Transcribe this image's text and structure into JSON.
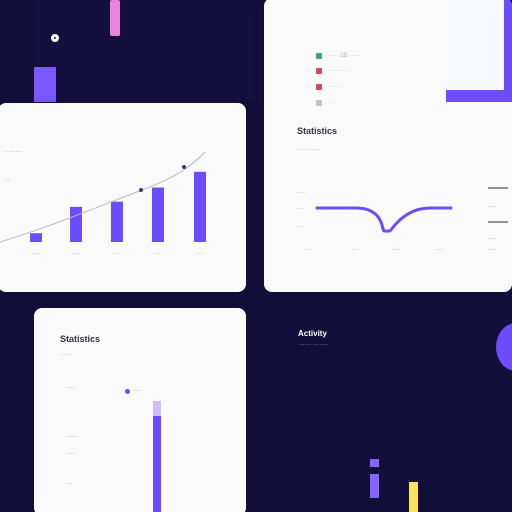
{
  "colors": {
    "background": "#120f3a",
    "card": "#fafafa",
    "accent": "#6d4cff",
    "accent_light": "#c9b8ff",
    "yellow": "#ffe25c",
    "pink": "#e586e1",
    "green": "#3ea56d",
    "red": "#d8465f",
    "gray": "#9999aa"
  },
  "icons": {
    "dark_dot": "circle-icon",
    "legend_green": "checkbox-icon",
    "legend_red": "checkbox-icon",
    "legend_gray": "checkbox-icon"
  },
  "top_left": {
    "left_caption": "·· ········",
    "left_tag": "····"
  },
  "bar_chart": {
    "chart_data": {
      "type": "bar",
      "categories": [
        "·····",
        "·····",
        "·····",
        "·····",
        "·····"
      ],
      "values": [
        0.5,
        2,
        2.3,
        3.1,
        4
      ],
      "ylim": [
        0,
        4.5
      ]
    }
  },
  "top_right_card": {
    "title": "Statistics",
    "subtitle": "······· ·······",
    "legend_items": [
      {
        "label": "······2B ·······"
      },
      {
        "label": "···········"
      },
      {
        "label": "·······"
      },
      {
        "label": "···"
      }
    ],
    "y_labels": [
      "·····",
      "····",
      "····"
    ],
    "x_labels": [
      "·····",
      "·····",
      "·····",
      "·····"
    ]
  },
  "bottom_left_card": {
    "title": "Statistics",
    "subtitle": "········",
    "legend_item": "·····",
    "row_labels": [
      "·····",
      "······",
      "·····",
      "····"
    ],
    "progress": {
      "track_fill_fraction": 1,
      "fill_fraction": 0.87
    }
  },
  "bottom_right_dark": {
    "title": "Activity",
    "subtitle": "········ ·········"
  }
}
